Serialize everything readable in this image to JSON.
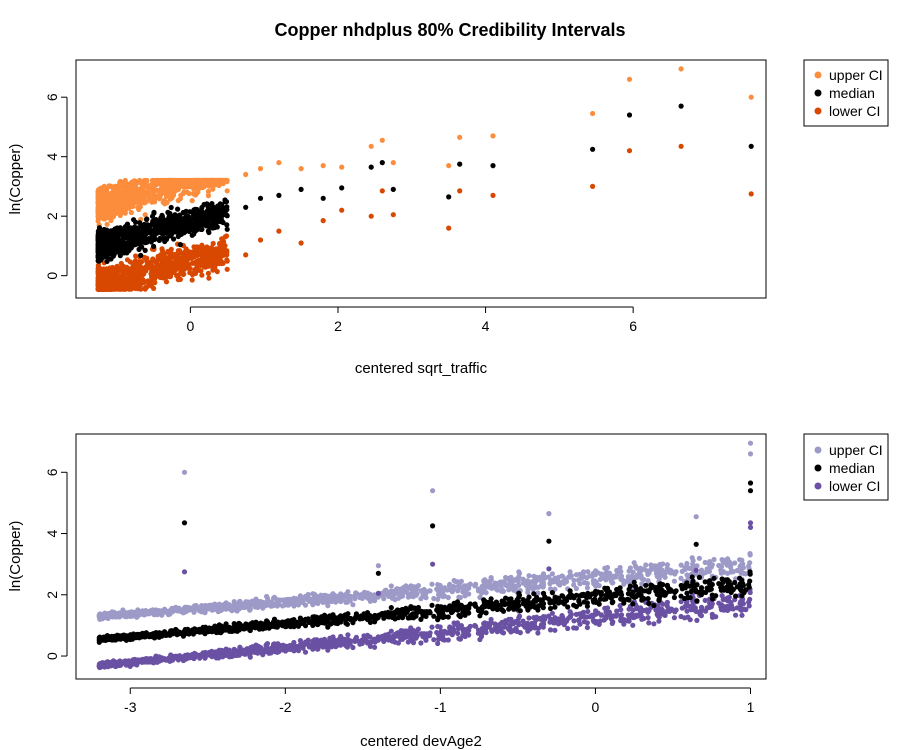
{
  "figure": {
    "title": "Copper nhdplus 80% Credibility Intervals"
  },
  "chart_data": [
    {
      "type": "scatter",
      "xlabel": "centered sqrt_traffic",
      "ylabel": "ln(Copper)",
      "xlim": [
        -1.55,
        7.8
      ],
      "ylim": [
        -0.75,
        7.25
      ],
      "xticks": [
        "0",
        "2",
        "4",
        "6"
      ],
      "xtick_values": [
        0,
        2,
        4,
        6
      ],
      "yticks": [
        "0",
        "2",
        "4",
        "6"
      ],
      "ytick_values": [
        0,
        2,
        4,
        6
      ],
      "grid": false,
      "legend_position": "top-right, outside plot area",
      "series": [
        {
          "name": "upper CI",
          "color": "#FC8D3D"
        },
        {
          "name": "median",
          "color": "#000000"
        },
        {
          "name": "lower CI",
          "color": "#D94801"
        }
      ],
      "points": {
        "x": [
          -1.15,
          -0.6,
          0.35,
          0.75,
          0.95,
          1.2,
          1.5,
          1.8,
          2.05,
          2.45,
          2.6,
          2.75,
          3.5,
          3.65,
          4.1,
          5.45,
          5.95,
          6.65,
          7.6
        ],
        "upper": [
          2.8,
          3.0,
          3.2,
          3.4,
          3.6,
          3.8,
          3.6,
          3.7,
          3.65,
          4.35,
          4.55,
          3.8,
          3.7,
          4.65,
          4.7,
          5.45,
          6.6,
          6.95,
          6.0
        ],
        "median": [
          1.2,
          1.6,
          2.1,
          2.3,
          2.6,
          2.7,
          2.9,
          2.6,
          2.95,
          3.65,
          3.8,
          2.9,
          2.65,
          3.75,
          3.7,
          4.25,
          5.4,
          5.7,
          4.35
        ],
        "lower": [
          -0.1,
          0.3,
          0.9,
          0.7,
          1.2,
          1.5,
          1.1,
          1.85,
          2.2,
          2.0,
          2.85,
          2.05,
          1.6,
          2.85,
          2.7,
          3.0,
          4.2,
          4.35,
          2.75
        ]
      },
      "dense_cluster": {
        "x_range": [
          -1.25,
          0.5
        ],
        "upper_range": [
          1.5,
          3.1
        ],
        "median_range": [
          0.2,
          2.4
        ],
        "lower_range": [
          -0.45,
          1.4
        ]
      }
    },
    {
      "type": "scatter",
      "xlabel": "centered devAge2",
      "ylabel": "ln(Copper)",
      "xlim": [
        -3.35,
        1.1
      ],
      "ylim": [
        -0.75,
        7.25
      ],
      "xticks": [
        "-3",
        "-2",
        "-1",
        "0",
        "1"
      ],
      "xtick_values": [
        -3,
        -2,
        -1,
        0,
        1
      ],
      "yticks": [
        "0",
        "2",
        "4",
        "6"
      ],
      "ytick_values": [
        0,
        2,
        4,
        6
      ],
      "grid": false,
      "legend_position": "top-right, outside plot area",
      "series": [
        {
          "name": "upper CI",
          "color": "#9E9AC8"
        },
        {
          "name": "median",
          "color": "#000000"
        },
        {
          "name": "lower CI",
          "color": "#6A51A3"
        }
      ],
      "trend": {
        "upper": {
          "at_x_min": 1.3,
          "at_x_max": 2.95
        },
        "median": {
          "at_x_min": 0.55,
          "at_x_max": 2.35
        },
        "lower": {
          "at_x_min": -0.3,
          "at_x_max": 1.75
        }
      },
      "outliers": {
        "x": [
          -2.65,
          -1.05,
          1.0,
          1.0,
          -1.4,
          -0.3,
          0.65
        ],
        "upper": [
          6.0,
          5.4,
          6.95,
          6.6,
          2.95,
          4.65,
          4.55
        ],
        "median": [
          4.35,
          4.25,
          5.65,
          5.4,
          2.7,
          3.75,
          3.65
        ],
        "lower": [
          2.75,
          3.0,
          4.35,
          4.2,
          2.05,
          2.85,
          2.8
        ]
      }
    }
  ]
}
